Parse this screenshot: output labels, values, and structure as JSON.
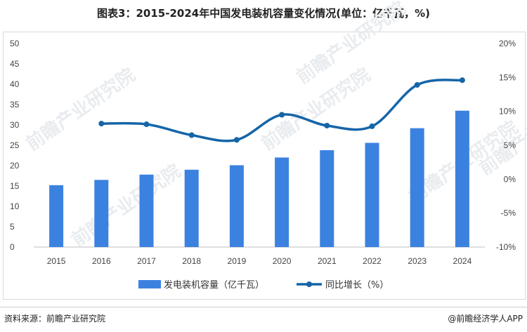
{
  "title": "图表3：2015-2024年中国发电装机容量变化情况(单位：亿千瓦，%)",
  "footer": {
    "source": "资料来源：前瞻产业研究院",
    "brand": "@前瞻经济学人APP"
  },
  "watermark": "前瞻产业研究院",
  "colors": {
    "bar": "#3b82e0",
    "line": "#1565a8"
  },
  "chart_data": {
    "type": "bar",
    "categories": [
      "2015",
      "2016",
      "2017",
      "2018",
      "2019",
      "2020",
      "2021",
      "2022",
      "2023",
      "2024"
    ],
    "series": [
      {
        "name": "发电装机容量（亿千瓦）",
        "type": "bar",
        "axis": "left",
        "values": [
          15.2,
          16.5,
          17.8,
          19.0,
          20.1,
          22.0,
          23.8,
          25.6,
          29.2,
          33.5
        ]
      },
      {
        "name": "同比增长（%）",
        "type": "line",
        "axis": "right",
        "values": [
          null,
          8.2,
          8.1,
          6.5,
          5.8,
          9.5,
          7.9,
          7.8,
          13.9,
          14.6
        ]
      }
    ],
    "y_left": {
      "ticks": [
        "0",
        "5",
        "10",
        "15",
        "20",
        "25",
        "30",
        "35",
        "40",
        "45",
        "50"
      ],
      "ylim": [
        0,
        50
      ]
    },
    "y_right": {
      "ticks": [
        "-10%",
        "-5%",
        "0%",
        "5%",
        "10%",
        "15%",
        "20%"
      ],
      "ylim": [
        -10,
        20
      ]
    },
    "grid": false,
    "legend": "bottom"
  }
}
